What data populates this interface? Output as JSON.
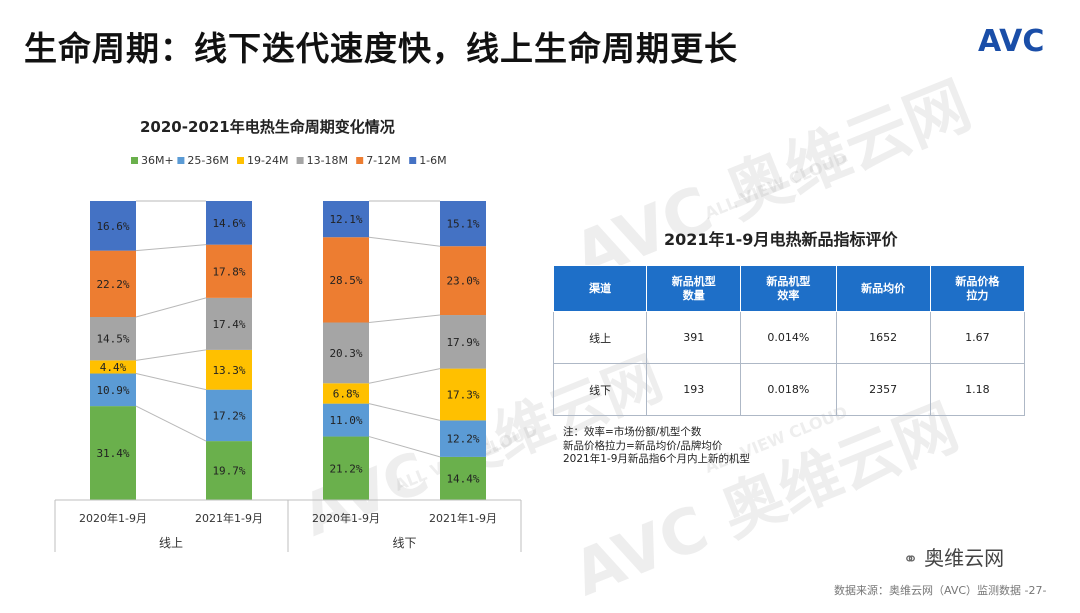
{
  "page": {
    "title": "生命周期：线下迭代速度快，线上生命周期更长",
    "logo": "AVC",
    "watermark_cn": "奥维云网",
    "watermark_en": "ALL VIEW CLOUD",
    "wechat_label": "奥维云网",
    "source": "数据来源：奥维云网（AVC）监测数据 -27-"
  },
  "chart_data": {
    "type": "bar",
    "stacked": true,
    "percent": true,
    "title": "2020-2021年电热生命周期变化情况",
    "categories": [
      "2020年1-9月",
      "2021年1-9月",
      "2020年1-9月",
      "2021年1-9月"
    ],
    "groups": [
      {
        "label": "线上",
        "categories": [
          0,
          1
        ]
      },
      {
        "label": "线下",
        "categories": [
          2,
          3
        ]
      }
    ],
    "legend_position": "top",
    "ylim": [
      0,
      100
    ],
    "series": [
      {
        "name": "36M+",
        "color": "#6ab04c",
        "values": [
          31.4,
          19.7,
          21.2,
          14.4
        ]
      },
      {
        "name": "25-36M",
        "color": "#5b9bd5",
        "values": [
          10.9,
          17.2,
          11.0,
          12.2
        ]
      },
      {
        "name": "19-24M",
        "color": "#ffc000",
        "values": [
          4.4,
          13.3,
          6.8,
          17.3
        ]
      },
      {
        "name": "13-18M",
        "color": "#a5a5a5",
        "values": [
          14.5,
          17.4,
          20.3,
          17.9
        ]
      },
      {
        "name": "7-12M",
        "color": "#ed7d31",
        "values": [
          22.2,
          17.8,
          28.5,
          23.0
        ]
      },
      {
        "name": "1-6M",
        "color": "#4472c4",
        "values": [
          16.6,
          14.6,
          12.1,
          15.1
        ]
      }
    ],
    "data_labels": [
      [
        "31.4%",
        "19.7%",
        "21.2%",
        "14.4%"
      ],
      [
        "10.9%",
        "17.2%",
        "11.0%",
        "12.2%"
      ],
      [
        "4.4%",
        "13.3%",
        "6.8%",
        "17.3%"
      ],
      [
        "14.5%",
        "17.4%",
        "20.3%",
        "17.9%"
      ],
      [
        "22.2%",
        "17.8%",
        "28.5%",
        "23.0%"
      ],
      [
        "16.6%",
        "14.6%",
        "12.1%",
        "15.1%"
      ]
    ]
  },
  "table": {
    "title": "2021年1-9月电热新品指标评价",
    "headers": {
      "h0": "渠道",
      "h1a": "新品机型",
      "h1b": "数量",
      "h2a": "新品机型",
      "h2b": "效率",
      "h3": "新品均价",
      "h4a": "新品价格",
      "h4b": "拉力"
    },
    "rows": [
      {
        "channel": "线上",
        "count": "391",
        "efficiency": "0.014%",
        "avg_price": "1652",
        "pull": "1.67"
      },
      {
        "channel": "线下",
        "count": "193",
        "efficiency": "0.018%",
        "avg_price": "2357",
        "pull": "1.18"
      }
    ],
    "notes": [
      "注：效率=市场份额/机型个数",
      "新品价格拉力=新品均价/品牌均价",
      "2021年1-9月新品指6个月内上新的机型"
    ]
  }
}
